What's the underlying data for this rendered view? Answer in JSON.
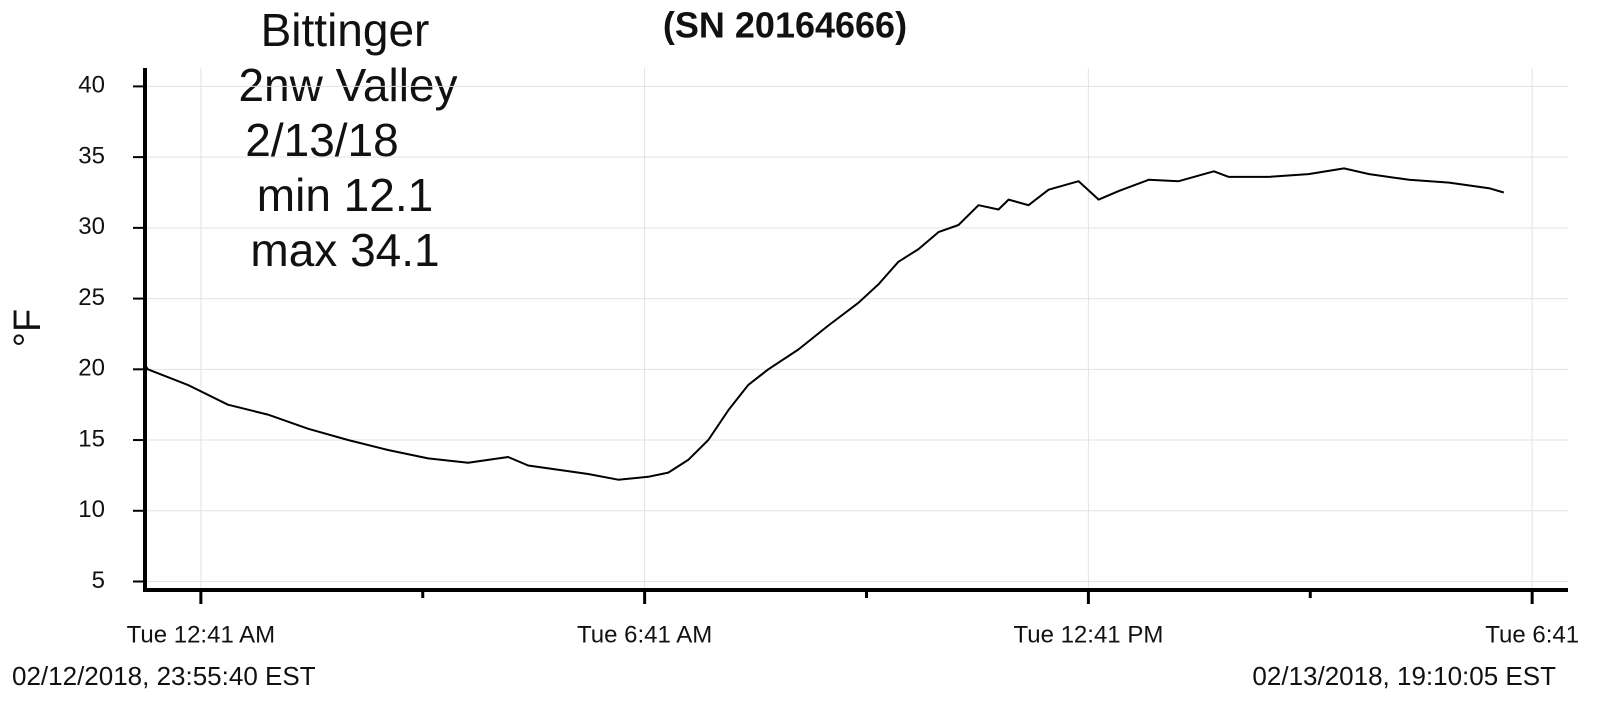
{
  "chart_data": {
    "type": "line",
    "title": "(SN 20164666)",
    "annotation": [
      "Bittinger",
      "2nw Valley",
      "2/13/18",
      "min 12.1",
      "max 34.1"
    ],
    "y_label": "°F",
    "start_time": "02/12/2018, 23:55:40 EST",
    "end_time": "02/13/2018, 19:10:05 EST",
    "xlim": [
      -0.0722,
      19.168
    ],
    "xticks": [
      {
        "value": 0.6833,
        "label": "Tue 12:41 AM"
      },
      {
        "value": 6.6833,
        "label": "Tue 6:41 AM"
      },
      {
        "value": 12.6833,
        "label": "Tue 12:41 PM"
      },
      {
        "value": 18.6833,
        "label": "Tue 6:41"
      }
    ],
    "xminor": [
      3.6833,
      9.6833,
      15.6833
    ],
    "ylim": [
      4.4,
      41.3
    ],
    "yticks": [
      5,
      10,
      15,
      20,
      25,
      30,
      35,
      40
    ],
    "grid": true,
    "series": [
      {
        "color": "#000000",
        "x": [
          -0.07,
          -0.034,
          0.507,
          1.049,
          1.59,
          2.131,
          2.673,
          3.214,
          3.755,
          4.296,
          4.567,
          4.838,
          5.108,
          5.514,
          5.92,
          6.326,
          6.732,
          7.003,
          7.273,
          7.544,
          7.815,
          8.085,
          8.356,
          8.762,
          9.168,
          9.574,
          9.844,
          10.115,
          10.386,
          10.656,
          10.927,
          11.198,
          11.468,
          11.604,
          11.874,
          12.145,
          12.551,
          12.822,
          13.092,
          13.498,
          13.904,
          14.38,
          14.58,
          15.12,
          15.66,
          16.14,
          16.48,
          17.02,
          17.56,
          18.1,
          18.3
        ],
        "values": [
          20.3,
          20.0,
          18.9,
          17.5,
          16.8,
          15.8,
          15.0,
          14.3,
          13.7,
          13.4,
          13.6,
          13.8,
          13.2,
          12.9,
          12.6,
          12.2,
          12.4,
          12.7,
          13.6,
          15.0,
          17.1,
          18.9,
          20.0,
          21.4,
          23.1,
          24.7,
          26.0,
          27.6,
          28.5,
          29.7,
          30.2,
          31.6,
          31.3,
          32.0,
          31.6,
          32.7,
          33.3,
          32.0,
          32.6,
          33.4,
          33.3,
          34.0,
          33.6,
          33.6,
          33.8,
          34.2,
          33.8,
          33.4,
          33.2,
          32.8,
          32.5
        ]
      }
    ]
  }
}
